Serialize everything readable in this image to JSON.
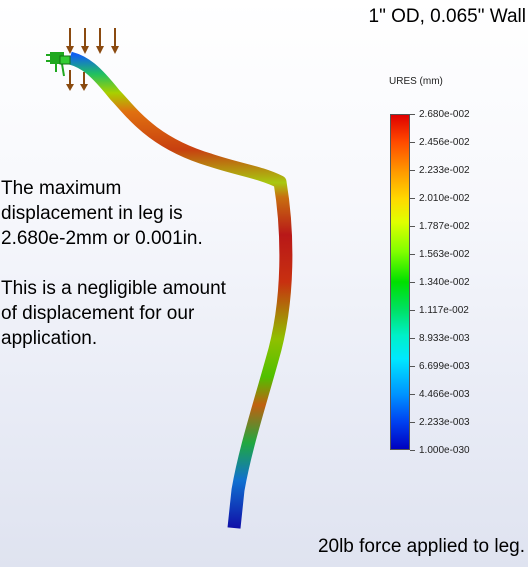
{
  "header": {
    "title": "1\" OD, 0.065\" Wall"
  },
  "annotation": {
    "line1": "The maximum",
    "line2": "displacement in leg is",
    "line3": "2.680e-2mm or 0.001in.",
    "line4": "This is a negligible amount",
    "line5": "of displacement for our",
    "line6": "application."
  },
  "footer": {
    "text": "20lb force applied to leg."
  },
  "legend": {
    "title": "URES (mm)",
    "ticks": [
      "2.680e-002",
      "2.456e-002",
      "2.233e-002",
      "2.010e-002",
      "1.787e-002",
      "1.563e-002",
      "1.340e-002",
      "1.117e-002",
      "8.933e-003",
      "6.699e-003",
      "4.466e-003",
      "2.233e-003",
      "1.000e-030"
    ]
  },
  "colors": {
    "max": "#e00000",
    "min": "#0000c0",
    "load_arrow": "#8a4a10",
    "fixture": "#1fa81f"
  },
  "icons": {
    "load": "down-arrow-icon",
    "fixture": "fixed-geometry-icon"
  }
}
